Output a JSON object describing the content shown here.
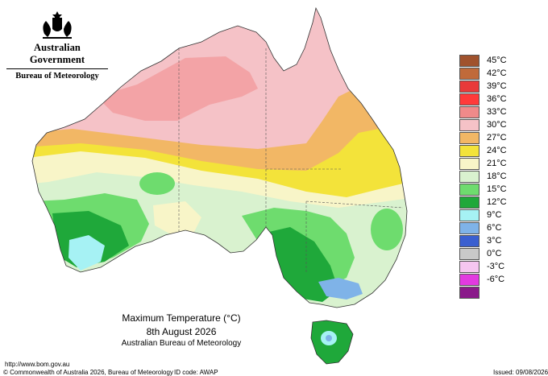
{
  "header": {
    "government": "Australian Government",
    "bureau": "Bureau of Meteorology"
  },
  "map": {
    "title": "Maximum Temperature (°C)",
    "date": "8th August 2026",
    "source": "Australian Bureau of Meteorology"
  },
  "legend": [
    {
      "label": "45°C",
      "color": "#a0522d"
    },
    {
      "label": "42°C",
      "color": "#c06a3a"
    },
    {
      "label": "39°C",
      "color": "#e83a3a"
    },
    {
      "label": "36°C",
      "color": "#ff3a3a"
    },
    {
      "label": "33°C",
      "color": "#f08a8a"
    },
    {
      "label": "30°C",
      "color": "#f5c2c7"
    },
    {
      "label": "27°C",
      "color": "#f2b765"
    },
    {
      "label": "24°C",
      "color": "#f3e33a"
    },
    {
      "label": "21°C",
      "color": "#f8f5c8"
    },
    {
      "label": "18°C",
      "color": "#d9f2cf"
    },
    {
      "label": "15°C",
      "color": "#6edc6e"
    },
    {
      "label": "12°C",
      "color": "#1fa83a"
    },
    {
      "label": "9°C",
      "color": "#a6f2f4"
    },
    {
      "label": "6°C",
      "color": "#7fb3e8"
    },
    {
      "label": "3°C",
      "color": "#3a5fd0"
    },
    {
      "label": "0°C",
      "color": "#c9c9c9"
    },
    {
      "label": "-3°C",
      "color": "#f5c6f0"
    },
    {
      "label": "-6°C",
      "color": "#e23ae0"
    },
    {
      "label": "",
      "color": "#8a1a8a"
    }
  ],
  "footer": {
    "url": "http://www.bom.gov.au",
    "copyright": "© Commonwealth of Australia 2026, Bureau of Meteorology",
    "id_code": "ID code: AWAP",
    "issued": "Issued: 09/08/2026"
  }
}
